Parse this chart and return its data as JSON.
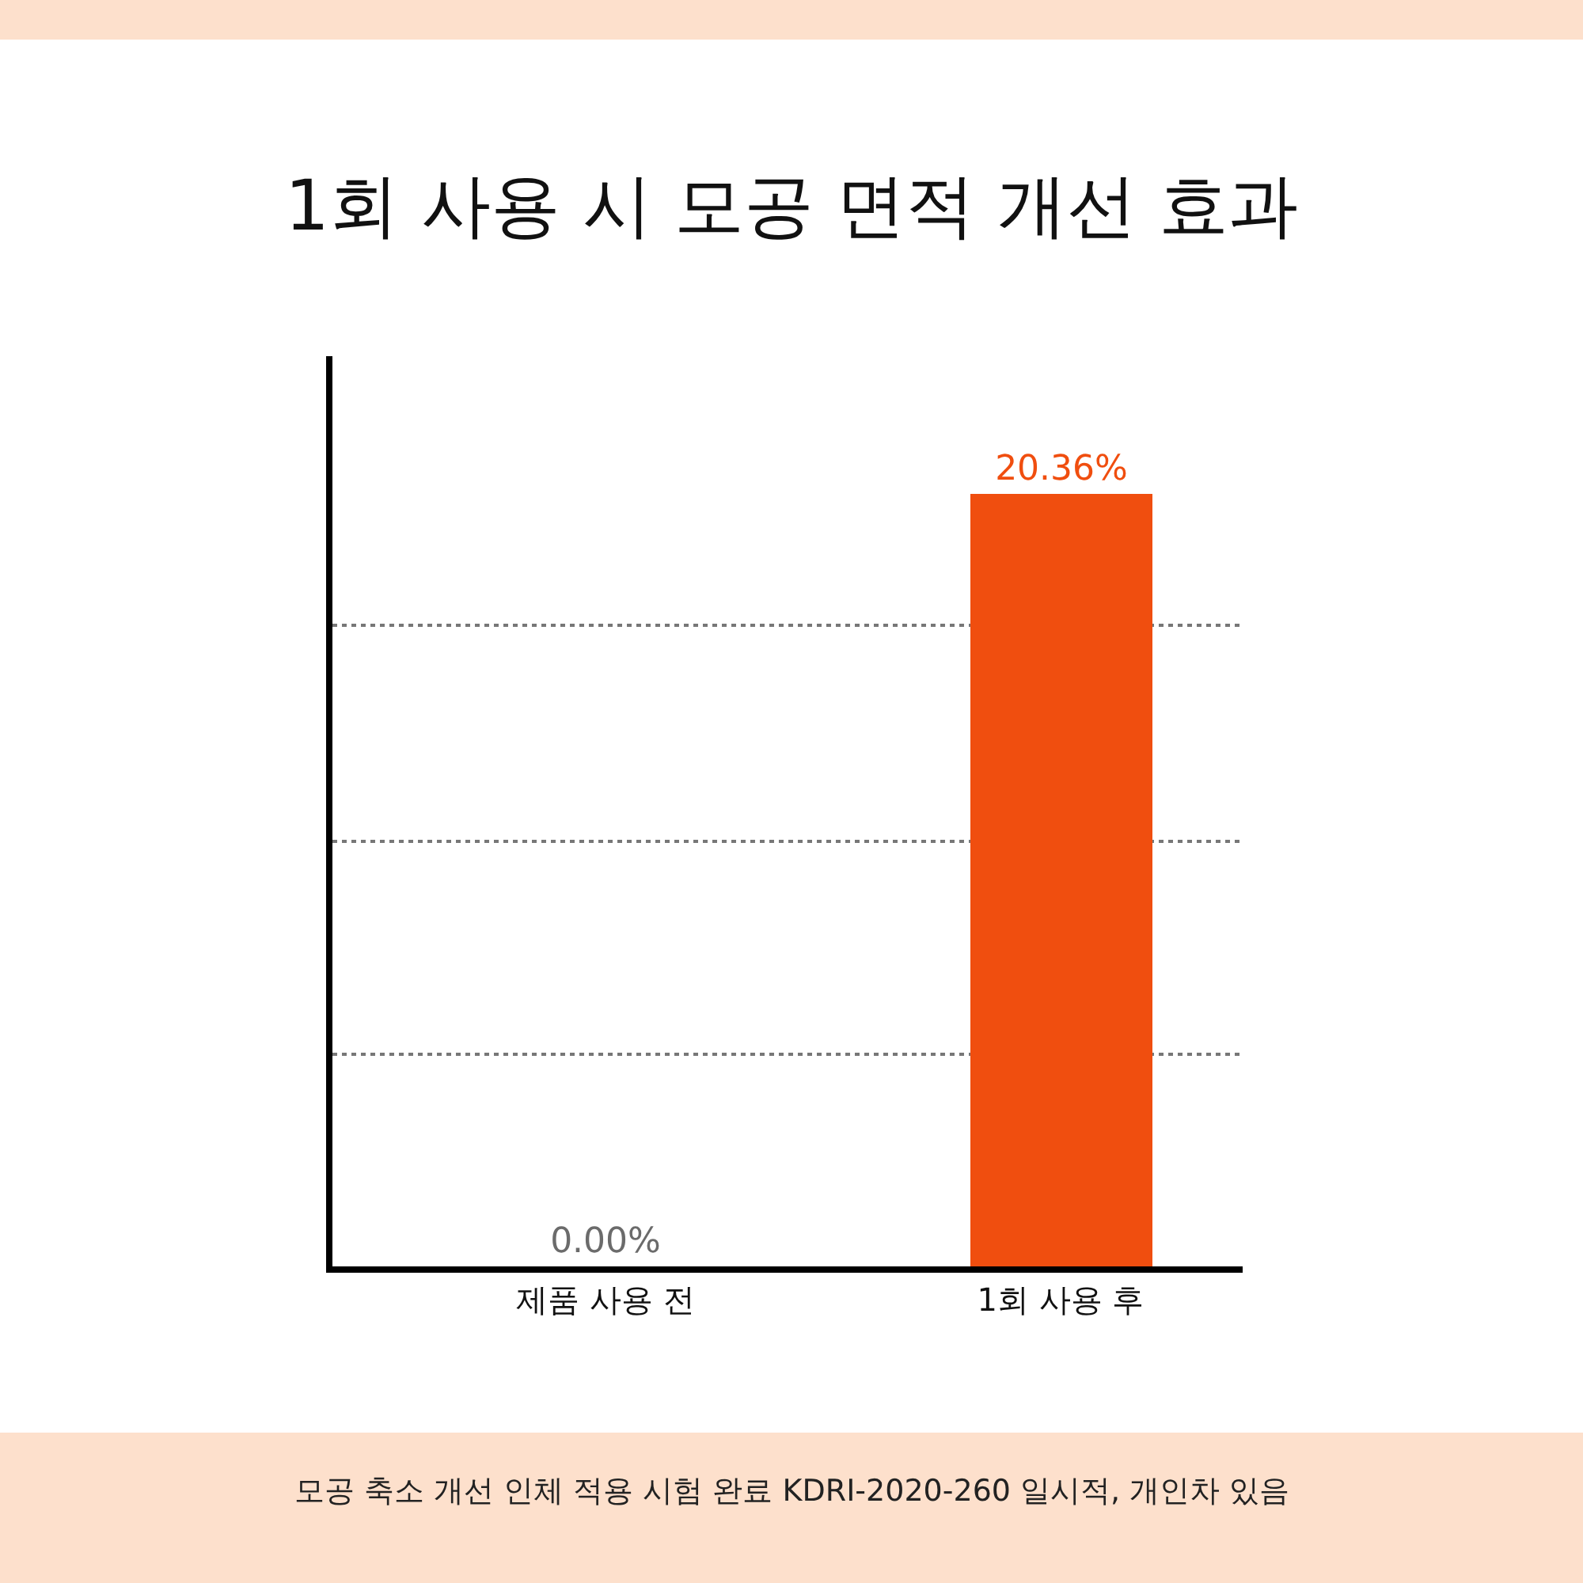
{
  "chart_data": {
    "type": "bar",
    "title": "1회 사용 시 모공 면적 개선 효과",
    "categories": [
      "제품 사용 전",
      "1회 사용 후"
    ],
    "values": [
      0.0,
      20.36
    ],
    "colors": [
      "#6b6b6b",
      "#f04e0f"
    ],
    "value_labels": [
      "0.00%",
      "20.36%"
    ],
    "ylim": [
      0,
      24
    ],
    "yticks": [
      {
        "value": 5.6,
        "label": null
      },
      {
        "value": 11.2,
        "label": null
      },
      {
        "value": 16.9,
        "label": null
      }
    ],
    "grid": "y",
    "annotations": [
      "모공 축소 개선 인체 적용 시험 완료 KDRI-2020-260 일시적, 개인차 있음"
    ]
  }
}
